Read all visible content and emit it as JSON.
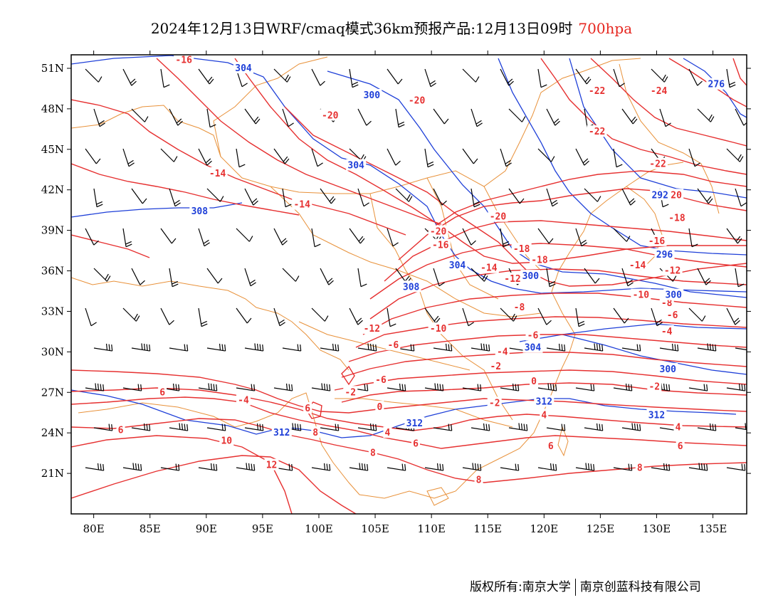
{
  "title": {
    "main": "2024年12月13日WRF/cmaq模式36km预报产品:12月13日09时",
    "level": "700hpa",
    "level_color": "#e6261f"
  },
  "footer": {
    "left": "版权所有:南京大学",
    "right": "南京创蓝科技有限公司"
  },
  "map": {
    "lon_range": [
      78,
      138
    ],
    "lat_range": [
      18,
      52
    ],
    "x_ticks": [
      "80E",
      "85E",
      "90E",
      "95E",
      "100E",
      "105E",
      "110E",
      "115E",
      "120E",
      "125E",
      "130E",
      "135E"
    ],
    "y_ticks": [
      "51N",
      "48N",
      "45N",
      "42N",
      "39N",
      "36N",
      "33N",
      "30N",
      "27N",
      "24N",
      "21N"
    ],
    "temperature_color": "#e63030",
    "height_color": "#1e3fd8",
    "boundary_color": "#e8913a",
    "barb_color": "#000000"
  },
  "chart_data": {
    "type": "contour_map",
    "temperature_labels": [
      {
        "text": "-16",
        "lon": 88.0,
        "lat": 51.6
      },
      {
        "text": "-20",
        "lon": 101.0,
        "lat": 47.5
      },
      {
        "text": "-20",
        "lon": 108.7,
        "lat": 48.6
      },
      {
        "text": "-14",
        "lon": 91.0,
        "lat": 43.2
      },
      {
        "text": "-14",
        "lon": 98.5,
        "lat": 40.9
      },
      {
        "text": "-22",
        "lon": 124.7,
        "lat": 49.3
      },
      {
        "text": "-24",
        "lon": 130.2,
        "lat": 49.3
      },
      {
        "text": "-22",
        "lon": 124.7,
        "lat": 46.3
      },
      {
        "text": "-22",
        "lon": 130.1,
        "lat": 43.9
      },
      {
        "text": "-20",
        "lon": 131.5,
        "lat": 41.6
      },
      {
        "text": "-20",
        "lon": 115.9,
        "lat": 40.0
      },
      {
        "text": "-18",
        "lon": 131.8,
        "lat": 39.9
      },
      {
        "text": "-20",
        "lon": 110.6,
        "lat": 38.9
      },
      {
        "text": "-16",
        "lon": 110.8,
        "lat": 37.9
      },
      {
        "text": "-16",
        "lon": 130.0,
        "lat": 38.2
      },
      {
        "text": "-18",
        "lon": 118.0,
        "lat": 37.6
      },
      {
        "text": "-18",
        "lon": 119.6,
        "lat": 36.8
      },
      {
        "text": "-14",
        "lon": 115.1,
        "lat": 36.2
      },
      {
        "text": "-14",
        "lon": 128.3,
        "lat": 36.4
      },
      {
        "text": "-12",
        "lon": 131.4,
        "lat": 36.0
      },
      {
        "text": "-12",
        "lon": 117.2,
        "lat": 35.4
      },
      {
        "text": "-10",
        "lon": 128.6,
        "lat": 34.2
      },
      {
        "text": "-8",
        "lon": 130.9,
        "lat": 33.6
      },
      {
        "text": "-6",
        "lon": 131.4,
        "lat": 32.7
      },
      {
        "text": "-8",
        "lon": 117.8,
        "lat": 33.3
      },
      {
        "text": "-12",
        "lon": 104.7,
        "lat": 31.7
      },
      {
        "text": "-10",
        "lon": 110.6,
        "lat": 31.7
      },
      {
        "text": "-6",
        "lon": 119.0,
        "lat": 31.2
      },
      {
        "text": "-4",
        "lon": 130.9,
        "lat": 31.5
      },
      {
        "text": "-6",
        "lon": 106.6,
        "lat": 30.5
      },
      {
        "text": "-4",
        "lon": 116.3,
        "lat": 30.0
      },
      {
        "text": "-2",
        "lon": 115.7,
        "lat": 28.9
      },
      {
        "text": "-6",
        "lon": 105.5,
        "lat": 27.9
      },
      {
        "text": "0",
        "lon": 119.1,
        "lat": 27.8
      },
      {
        "text": "-2",
        "lon": 129.8,
        "lat": 27.4
      },
      {
        "text": "-2",
        "lon": 102.8,
        "lat": 27.0
      },
      {
        "text": "6",
        "lon": 86.1,
        "lat": 27.0
      },
      {
        "text": "-4",
        "lon": 93.3,
        "lat": 26.4
      },
      {
        "text": "0",
        "lon": 105.4,
        "lat": 25.9
      },
      {
        "text": "-2",
        "lon": 115.6,
        "lat": 26.2
      },
      {
        "text": "6",
        "lon": 99.0,
        "lat": 25.8
      },
      {
        "text": "4",
        "lon": 120.0,
        "lat": 25.3
      },
      {
        "text": "4",
        "lon": 106.1,
        "lat": 24.0
      },
      {
        "text": "4",
        "lon": 131.9,
        "lat": 24.4
      },
      {
        "text": "6",
        "lon": 82.4,
        "lat": 24.2
      },
      {
        "text": "8",
        "lon": 99.7,
        "lat": 24.0
      },
      {
        "text": "10",
        "lon": 91.8,
        "lat": 23.4
      },
      {
        "text": "6",
        "lon": 108.6,
        "lat": 23.2
      },
      {
        "text": "6",
        "lon": 120.6,
        "lat": 23.0
      },
      {
        "text": "6",
        "lon": 132.1,
        "lat": 23.0
      },
      {
        "text": "8",
        "lon": 104.8,
        "lat": 22.5
      },
      {
        "text": "12",
        "lon": 95.8,
        "lat": 21.6
      },
      {
        "text": "8",
        "lon": 128.5,
        "lat": 21.4
      },
      {
        "text": "8",
        "lon": 114.2,
        "lat": 20.5
      }
    ],
    "height_labels": [
      {
        "text": "304",
        "lon": 93.3,
        "lat": 51.0
      },
      {
        "text": "300",
        "lon": 104.7,
        "lat": 49.0
      },
      {
        "text": "276",
        "lon": 135.3,
        "lat": 49.8
      },
      {
        "text": "304",
        "lon": 103.3,
        "lat": 43.8
      },
      {
        "text": "308",
        "lon": 89.4,
        "lat": 40.4
      },
      {
        "text": "292",
        "lon": 130.3,
        "lat": 41.6
      },
      {
        "text": "296",
        "lon": 130.7,
        "lat": 37.2
      },
      {
        "text": "304",
        "lon": 112.3,
        "lat": 36.4
      },
      {
        "text": "300",
        "lon": 118.8,
        "lat": 35.6
      },
      {
        "text": "308",
        "lon": 108.2,
        "lat": 34.8
      },
      {
        "text": "300",
        "lon": 131.5,
        "lat": 34.2
      },
      {
        "text": "304",
        "lon": 119.0,
        "lat": 30.3
      },
      {
        "text": "300",
        "lon": 131.0,
        "lat": 28.7
      },
      {
        "text": "312",
        "lon": 120.0,
        "lat": 26.3
      },
      {
        "text": "312",
        "lon": 130.0,
        "lat": 25.3
      },
      {
        "text": "312",
        "lon": 108.5,
        "lat": 24.7
      },
      {
        "text": "312",
        "lon": 96.7,
        "lat": 24.0
      }
    ]
  }
}
